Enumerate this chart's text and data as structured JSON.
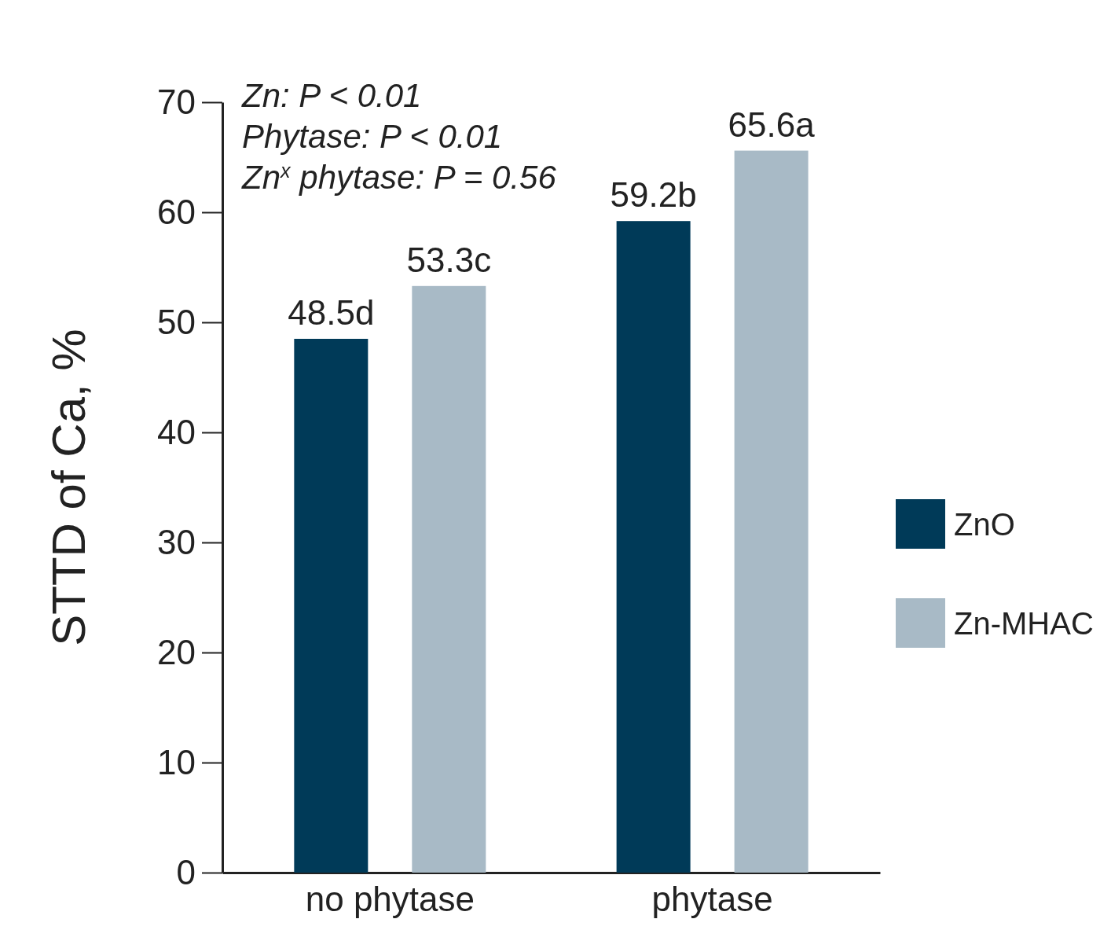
{
  "chart_data": {
    "type": "bar",
    "ylabel": "STTD of Ca, %",
    "categories": [
      "no phytase",
      "phytase"
    ],
    "series": [
      {
        "name": "ZnO",
        "color": "#003a58",
        "values": [
          48.5,
          59.2
        ],
        "value_labels": [
          "48.5d",
          "59.2b"
        ]
      },
      {
        "name": "Zn-MHAC",
        "color": "#a8bac6",
        "values": [
          53.3,
          65.6
        ],
        "value_labels": [
          "53.3c",
          "65.6a"
        ]
      }
    ],
    "ylim": [
      0,
      70
    ],
    "yticks": [
      0,
      10,
      20,
      30,
      40,
      50,
      60,
      70
    ],
    "grid": false,
    "legend": "right",
    "annotations": [
      "Zn: P < 0.01",
      "Phytase: P < 0.01",
      "Zn$^{x}$ phytase: P = 0.56"
    ]
  }
}
